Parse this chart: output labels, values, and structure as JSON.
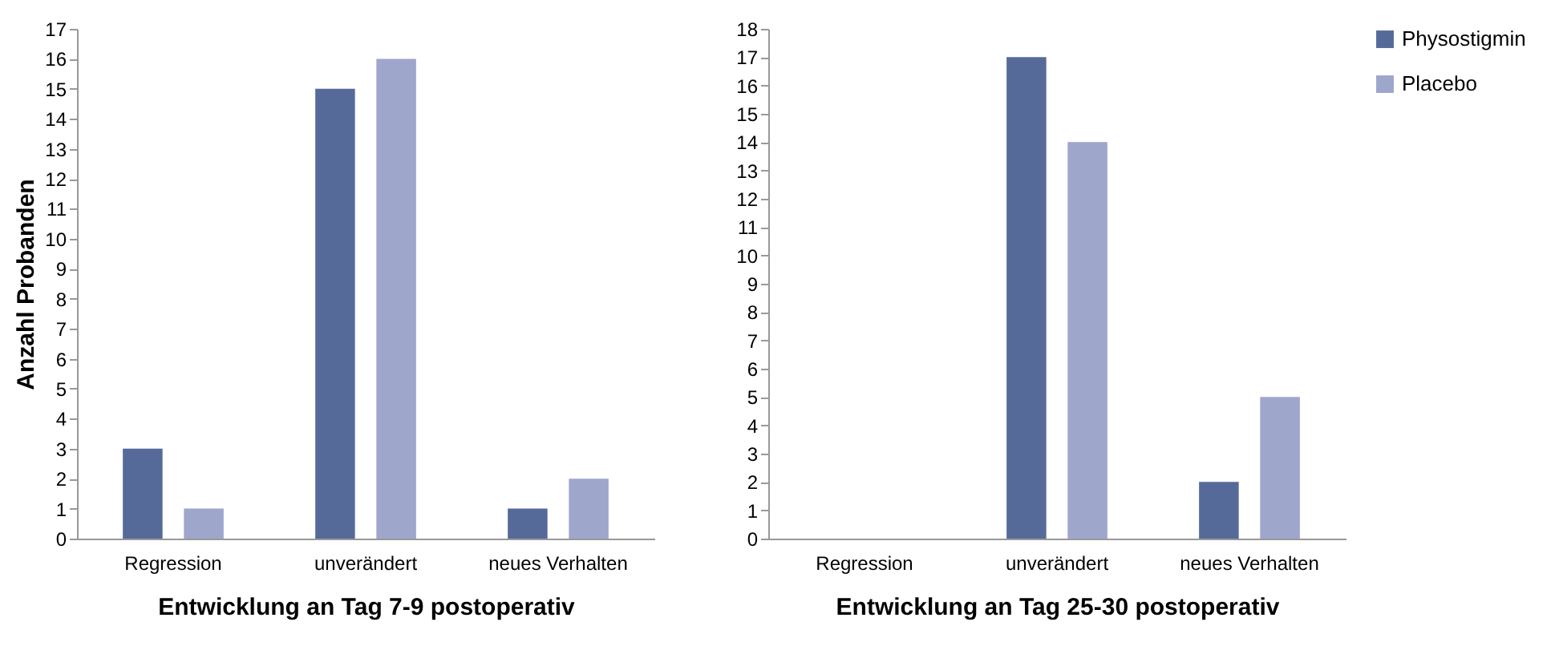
{
  "chart_data": [
    {
      "type": "bar",
      "xlabel": "Entwicklung an Tag 7-9 postoperativ",
      "ylabel": "Anzahl Probanden",
      "categories": [
        "Regression",
        "unverändert",
        "neues Verhalten"
      ],
      "series": [
        {
          "name": "Physostigmin",
          "color": "#566a9a",
          "values": [
            3,
            15,
            1
          ]
        },
        {
          "name": "Placebo",
          "color": "#9ea6cc",
          "values": [
            1,
            16,
            2
          ]
        }
      ],
      "ylim": [
        0,
        17
      ],
      "yticks": [
        0,
        1,
        2,
        3,
        4,
        5,
        6,
        7,
        8,
        9,
        10,
        11,
        12,
        13,
        14,
        15,
        16,
        17
      ],
      "grid": false,
      "legend": "right"
    },
    {
      "type": "bar",
      "xlabel": "Entwicklung an Tag 25-30 postoperativ",
      "categories": [
        "Regression",
        "unverändert",
        "neues Verhalten"
      ],
      "series": [
        {
          "name": "Physostigmin",
          "color": "#566a9a",
          "values": [
            0,
            17,
            2
          ]
        },
        {
          "name": "Placebo",
          "color": "#9ea6cc",
          "values": [
            0,
            14,
            5
          ]
        }
      ],
      "ylim": [
        0,
        18
      ],
      "yticks": [
        0,
        1,
        2,
        3,
        4,
        5,
        6,
        7,
        8,
        9,
        10,
        11,
        12,
        13,
        14,
        15,
        16,
        17,
        18
      ],
      "grid": false,
      "legend": "right"
    }
  ]
}
